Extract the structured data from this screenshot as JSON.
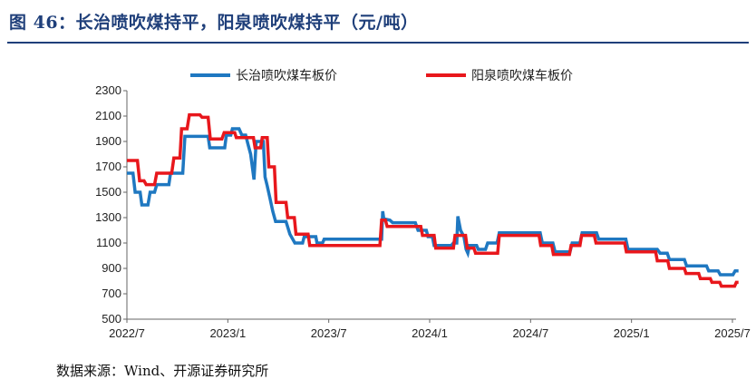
{
  "title": "图 46：长治喷吹煤持平，阳泉喷吹煤持平（元/吨）",
  "source": "数据来源：Wind、开源证券研究所",
  "chart_data": {
    "type": "line",
    "ylim": [
      500,
      2300
    ],
    "yticks": [
      "500",
      "700",
      "900",
      "1100",
      "1300",
      "1500",
      "1700",
      "1900",
      "2100",
      "2300"
    ],
    "xticks": [
      "2022/7",
      "2023/1",
      "2023/7",
      "2024/1",
      "2024/7",
      "2025/1",
      "2025/7"
    ],
    "series": [
      {
        "name": "长治喷吹煤车板价",
        "color": "#1f78c1",
        "points": [
          [
            "2022-07-01",
            1650
          ],
          [
            "2022-07-12",
            1650
          ],
          [
            "2022-07-16",
            1500
          ],
          [
            "2022-07-25",
            1500
          ],
          [
            "2022-07-28",
            1400
          ],
          [
            "2022-08-08",
            1400
          ],
          [
            "2022-08-12",
            1500
          ],
          [
            "2022-08-20",
            1500
          ],
          [
            "2022-08-24",
            1560
          ],
          [
            "2022-09-15",
            1560
          ],
          [
            "2022-09-18",
            1650
          ],
          [
            "2022-10-10",
            1650
          ],
          [
            "2022-10-14",
            1940
          ],
          [
            "2022-11-25",
            1940
          ],
          [
            "2022-11-28",
            1850
          ],
          [
            "2022-12-25",
            1850
          ],
          [
            "2022-12-28",
            1950
          ],
          [
            "2023-01-05",
            1950
          ],
          [
            "2023-01-08",
            2000
          ],
          [
            "2023-01-20",
            2000
          ],
          [
            "2023-01-25",
            1950
          ],
          [
            "2023-02-01",
            1950
          ],
          [
            "2023-02-05",
            1880
          ],
          [
            "2023-02-10",
            1800
          ],
          [
            "2023-02-16",
            1600
          ],
          [
            "2023-02-20",
            1900
          ],
          [
            "2023-03-05",
            1900
          ],
          [
            "2023-03-08",
            1620
          ],
          [
            "2023-03-12",
            1550
          ],
          [
            "2023-03-17",
            1450
          ],
          [
            "2023-03-22",
            1350
          ],
          [
            "2023-03-27",
            1270
          ],
          [
            "2023-04-15",
            1270
          ],
          [
            "2023-04-22",
            1170
          ],
          [
            "2023-05-01",
            1100
          ],
          [
            "2023-05-15",
            1100
          ],
          [
            "2023-05-18",
            1150
          ],
          [
            "2023-06-08",
            1150
          ],
          [
            "2023-06-10",
            1100
          ],
          [
            "2023-06-20",
            1100
          ],
          [
            "2023-06-23",
            1130
          ],
          [
            "2023-10-05",
            1130
          ],
          [
            "2023-10-07",
            1350
          ],
          [
            "2023-10-09",
            1290
          ],
          [
            "2023-10-20",
            1280
          ],
          [
            "2023-10-25",
            1260
          ],
          [
            "2023-12-05",
            1260
          ],
          [
            "2023-12-10",
            1200
          ],
          [
            "2023-12-25",
            1200
          ],
          [
            "2023-12-28",
            1150
          ],
          [
            "2024-01-05",
            1150
          ],
          [
            "2024-01-08",
            1080
          ],
          [
            "2024-02-08",
            1080
          ],
          [
            "2024-02-12",
            1100
          ],
          [
            "2024-02-18",
            1100
          ],
          [
            "2024-02-20",
            1310
          ],
          [
            "2024-02-25",
            1200
          ],
          [
            "2024-03-02",
            1150
          ],
          [
            "2024-03-06",
            1050
          ],
          [
            "2024-03-09",
            1020
          ],
          [
            "2024-03-12",
            1080
          ],
          [
            "2024-03-25",
            1080
          ],
          [
            "2024-03-28",
            1050
          ],
          [
            "2024-04-10",
            1050
          ],
          [
            "2024-04-14",
            1100
          ],
          [
            "2024-05-01",
            1100
          ],
          [
            "2024-05-05",
            1180
          ],
          [
            "2024-07-18",
            1180
          ],
          [
            "2024-07-22",
            1100
          ],
          [
            "2024-08-10",
            1100
          ],
          [
            "2024-08-14",
            1030
          ],
          [
            "2024-09-10",
            1030
          ],
          [
            "2024-09-14",
            1100
          ],
          [
            "2024-09-28",
            1100
          ],
          [
            "2024-10-02",
            1180
          ],
          [
            "2024-10-28",
            1180
          ],
          [
            "2024-11-01",
            1130
          ],
          [
            "2024-12-20",
            1130
          ],
          [
            "2024-12-24",
            1050
          ],
          [
            "2025-02-15",
            1050
          ],
          [
            "2025-02-20",
            1020
          ],
          [
            "2025-03-05",
            1020
          ],
          [
            "2025-03-09",
            970
          ],
          [
            "2025-04-05",
            970
          ],
          [
            "2025-04-09",
            920
          ],
          [
            "2025-05-15",
            920
          ],
          [
            "2025-05-19",
            880
          ],
          [
            "2025-06-05",
            880
          ],
          [
            "2025-06-09",
            850
          ],
          [
            "2025-07-02",
            850
          ],
          [
            "2025-07-06",
            880
          ],
          [
            "2025-07-12",
            880
          ]
        ]
      },
      {
        "name": "阳泉喷吹煤车板价",
        "color": "#e8171c",
        "points": [
          [
            "2022-07-01",
            1750
          ],
          [
            "2022-07-20",
            1750
          ],
          [
            "2022-07-24",
            1590
          ],
          [
            "2022-08-01",
            1590
          ],
          [
            "2022-08-05",
            1560
          ],
          [
            "2022-08-20",
            1560
          ],
          [
            "2022-08-24",
            1650
          ],
          [
            "2022-09-20",
            1650
          ],
          [
            "2022-09-24",
            1770
          ],
          [
            "2022-10-05",
            1770
          ],
          [
            "2022-10-08",
            2000
          ],
          [
            "2022-10-18",
            2000
          ],
          [
            "2022-10-22",
            2110
          ],
          [
            "2022-11-10",
            2110
          ],
          [
            "2022-11-14",
            2090
          ],
          [
            "2022-11-25",
            2090
          ],
          [
            "2022-11-29",
            1920
          ],
          [
            "2022-12-20",
            1920
          ],
          [
            "2022-12-24",
            1970
          ],
          [
            "2023-01-12",
            1970
          ],
          [
            "2023-01-15",
            1930
          ],
          [
            "2023-02-15",
            1930
          ],
          [
            "2023-02-18",
            1850
          ],
          [
            "2023-02-28",
            1850
          ],
          [
            "2023-03-03",
            1930
          ],
          [
            "2023-03-12",
            1930
          ],
          [
            "2023-03-15",
            1700
          ],
          [
            "2023-03-25",
            1700
          ],
          [
            "2023-03-28",
            1420
          ],
          [
            "2023-04-15",
            1420
          ],
          [
            "2023-04-18",
            1300
          ],
          [
            "2023-04-30",
            1300
          ],
          [
            "2023-05-03",
            1170
          ],
          [
            "2023-05-25",
            1170
          ],
          [
            "2023-05-28",
            1080
          ],
          [
            "2023-10-02",
            1080
          ],
          [
            "2023-10-05",
            1280
          ],
          [
            "2023-10-12",
            1280
          ],
          [
            "2023-10-15",
            1230
          ],
          [
            "2023-12-15",
            1230
          ],
          [
            "2023-12-18",
            1160
          ],
          [
            "2024-01-08",
            1160
          ],
          [
            "2024-01-11",
            1060
          ],
          [
            "2024-02-12",
            1060
          ],
          [
            "2024-02-15",
            1160
          ],
          [
            "2024-03-05",
            1160
          ],
          [
            "2024-03-08",
            1060
          ],
          [
            "2024-03-20",
            1060
          ],
          [
            "2024-03-23",
            1020
          ],
          [
            "2024-05-02",
            1020
          ],
          [
            "2024-05-05",
            1160
          ],
          [
            "2024-07-16",
            1160
          ],
          [
            "2024-07-19",
            1080
          ],
          [
            "2024-08-08",
            1080
          ],
          [
            "2024-08-11",
            1010
          ],
          [
            "2024-09-09",
            1010
          ],
          [
            "2024-09-12",
            1080
          ],
          [
            "2024-09-28",
            1080
          ],
          [
            "2024-10-01",
            1160
          ],
          [
            "2024-10-24",
            1160
          ],
          [
            "2024-10-27",
            1100
          ],
          [
            "2024-12-18",
            1100
          ],
          [
            "2024-12-21",
            1030
          ],
          [
            "2025-02-12",
            1030
          ],
          [
            "2025-02-15",
            960
          ],
          [
            "2025-03-06",
            960
          ],
          [
            "2025-03-09",
            900
          ],
          [
            "2025-04-05",
            900
          ],
          [
            "2025-04-08",
            860
          ],
          [
            "2025-05-01",
            860
          ],
          [
            "2025-05-04",
            820
          ],
          [
            "2025-05-22",
            820
          ],
          [
            "2025-05-25",
            790
          ],
          [
            "2025-06-08",
            790
          ],
          [
            "2025-06-11",
            760
          ],
          [
            "2025-07-05",
            760
          ],
          [
            "2025-07-08",
            790
          ],
          [
            "2025-07-12",
            790
          ]
        ]
      }
    ]
  }
}
